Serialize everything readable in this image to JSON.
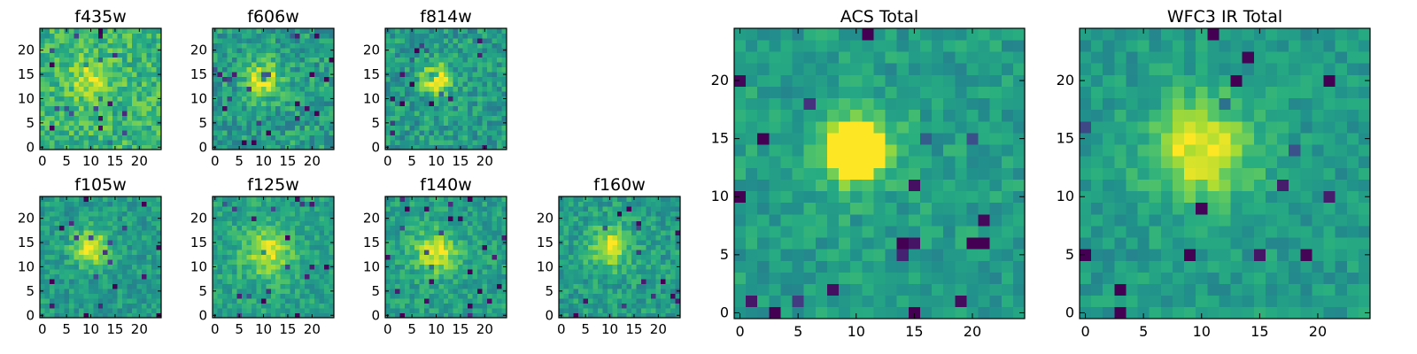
{
  "figure": {
    "colormap": "viridis",
    "colors": {
      "low": "#440154",
      "mid": "#21918c",
      "high": "#fde725",
      "frame": "#000000",
      "background": "#ffffff"
    }
  },
  "chart_data": [
    {
      "type": "heatmap",
      "title": "f435w",
      "grid_size": 25,
      "xlim": [
        0,
        24
      ],
      "ylim": [
        0,
        24
      ],
      "xticks": [
        0,
        5,
        10,
        15,
        20
      ],
      "yticks": [
        0,
        5,
        10,
        15,
        20
      ],
      "source_center": [
        10,
        14
      ],
      "source_sigma": 3.0,
      "source_peak": 0.25,
      "noise_level": 0.32,
      "base_level": 0.66,
      "clip_to_peak": false,
      "colorbar": false,
      "seed": 11
    },
    {
      "type": "heatmap",
      "title": "f606w",
      "grid_size": 25,
      "xlim": [
        0,
        24
      ],
      "ylim": [
        0,
        24
      ],
      "xticks": [
        0,
        5,
        10,
        15,
        20
      ],
      "yticks": [
        0,
        5,
        10,
        15,
        20
      ],
      "source_center": [
        10,
        14
      ],
      "source_sigma": 2.5,
      "source_peak": 0.45,
      "noise_level": 0.32,
      "base_level": 0.56,
      "clip_to_peak": false,
      "colorbar": false,
      "seed": 23
    },
    {
      "type": "heatmap",
      "title": "f814w",
      "grid_size": 25,
      "xlim": [
        0,
        24
      ],
      "ylim": [
        0,
        24
      ],
      "xticks": [
        0,
        5,
        10,
        15,
        20
      ],
      "yticks": [
        0,
        5,
        10,
        15,
        20
      ],
      "source_center": [
        10,
        14
      ],
      "source_sigma": 2.0,
      "source_peak": 0.55,
      "noise_level": 0.3,
      "base_level": 0.55,
      "clip_to_peak": false,
      "colorbar": false,
      "seed": 37
    },
    {
      "type": "heatmap",
      "title": "f105w",
      "grid_size": 25,
      "xlim": [
        0,
        24
      ],
      "ylim": [
        0,
        24
      ],
      "xticks": [
        0,
        5,
        10,
        15,
        20
      ],
      "yticks": [
        0,
        5,
        10,
        15,
        20
      ],
      "source_center": [
        10,
        14
      ],
      "source_sigma": 2.5,
      "source_peak": 0.45,
      "noise_level": 0.24,
      "base_level": 0.55,
      "clip_to_peak": false,
      "colorbar": false,
      "seed": 41
    },
    {
      "type": "heatmap",
      "title": "f125w",
      "grid_size": 25,
      "xlim": [
        0,
        24
      ],
      "ylim": [
        0,
        24
      ],
      "xticks": [
        0,
        5,
        10,
        15,
        20
      ],
      "yticks": [
        0,
        5,
        10,
        15,
        20
      ],
      "source_center": [
        11,
        13
      ],
      "source_sigma": 3.5,
      "source_peak": 0.35,
      "noise_level": 0.24,
      "base_level": 0.58,
      "clip_to_peak": false,
      "colorbar": false,
      "seed": 53
    },
    {
      "type": "heatmap",
      "title": "f140w",
      "grid_size": 25,
      "xlim": [
        0,
        24
      ],
      "ylim": [
        0,
        24
      ],
      "xticks": [
        0,
        5,
        10,
        15,
        20
      ],
      "yticks": [
        0,
        5,
        10,
        15,
        20
      ],
      "source_center": [
        10,
        13
      ],
      "source_sigma": 3.0,
      "source_peak": 0.4,
      "noise_level": 0.24,
      "base_level": 0.57,
      "clip_to_peak": false,
      "colorbar": false,
      "seed": 67
    },
    {
      "type": "heatmap",
      "title": "f160w",
      "grid_size": 25,
      "xlim": [
        0,
        24
      ],
      "ylim": [
        0,
        24
      ],
      "xticks": [
        0,
        5,
        10,
        15,
        20
      ],
      "yticks": [
        0,
        5,
        10,
        15,
        20
      ],
      "source_center": [
        10,
        14
      ],
      "source_sigma": 2.8,
      "source_peak": 0.4,
      "noise_level": 0.26,
      "base_level": 0.56,
      "clip_to_peak": false,
      "colorbar": false,
      "seed": 79
    },
    {
      "type": "heatmap",
      "title": "ACS Total",
      "grid_size": 25,
      "xlim": [
        0,
        24
      ],
      "ylim": [
        0,
        24
      ],
      "xticks": [
        0,
        5,
        10,
        15,
        20
      ],
      "yticks": [
        0,
        5,
        10,
        15,
        20
      ],
      "source_center": [
        10,
        14
      ],
      "source_sigma": 2.3,
      "source_peak": 0.5,
      "noise_level": 0.22,
      "base_level": 0.56,
      "clip_to_peak": true,
      "colorbar": false,
      "seed": 91
    },
    {
      "type": "heatmap",
      "title": "WFC3 IR Total",
      "grid_size": 25,
      "xlim": [
        0,
        24
      ],
      "ylim": [
        0,
        24
      ],
      "xticks": [
        0,
        5,
        10,
        15,
        20
      ],
      "yticks": [
        0,
        5,
        10,
        15,
        20
      ],
      "source_center": [
        10,
        14
      ],
      "source_sigma": 3.0,
      "source_peak": 0.45,
      "noise_level": 0.2,
      "base_level": 0.55,
      "clip_to_peak": false,
      "colorbar": false,
      "seed": 103
    }
  ]
}
